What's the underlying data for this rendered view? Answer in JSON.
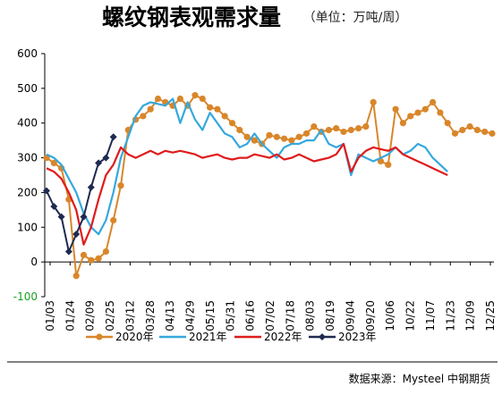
{
  "chart_data": {
    "type": "line",
    "title": "螺纹钢表观需求量",
    "subtitle": "（单位：万吨/周）",
    "source": "数据来源：Mysteel 中钢期货",
    "ylim": [
      -100,
      600
    ],
    "y_ticks": [
      "-100",
      "0",
      "100",
      "200",
      "300",
      "400",
      "500",
      "600"
    ],
    "x_ticks": [
      "01/03",
      "01/24",
      "02/09",
      "02/25",
      "03/12",
      "03/28",
      "04/13",
      "04/29",
      "05/15",
      "05/31",
      "06/16",
      "07/02",
      "07/18",
      "08/03",
      "08/19",
      "09/04",
      "09/20",
      "10/06",
      "10/22",
      "11/07",
      "11/23",
      "12/09",
      "12/25"
    ],
    "legend_position": "bottom",
    "series": [
      {
        "name": "2020年",
        "color": "#d9862a",
        "marker": "circle",
        "values": [
          300,
          285,
          270,
          180,
          -40,
          20,
          5,
          10,
          30,
          120,
          220,
          380,
          410,
          420,
          440,
          470,
          460,
          450,
          470,
          450,
          480,
          470,
          445,
          440,
          420,
          400,
          380,
          360,
          350,
          340,
          365,
          360,
          355,
          350,
          360,
          370,
          390,
          375,
          380,
          385,
          375,
          380,
          385,
          390,
          460,
          290,
          280,
          440,
          400,
          420,
          430,
          440,
          460,
          430,
          400,
          370,
          380,
          390,
          380,
          375,
          370
        ]
      },
      {
        "name": "2021年",
        "color": "#35a8de",
        "marker": "none",
        "values": [
          310,
          300,
          280,
          240,
          200,
          140,
          100,
          80,
          120,
          200,
          300,
          360,
          420,
          450,
          460,
          455,
          450,
          470,
          400,
          460,
          410,
          380,
          430,
          400,
          370,
          360,
          330,
          340,
          370,
          340,
          320,
          300,
          330,
          340,
          340,
          350,
          350,
          380,
          340,
          330,
          340,
          250,
          310,
          300,
          290,
          300,
          310,
          330,
          310,
          320,
          340,
          330,
          300,
          280,
          260
        ]
      },
      {
        "name": "2022年",
        "color": "#e01b1b",
        "marker": "none",
        "values": [
          270,
          260,
          240,
          200,
          150,
          50,
          100,
          180,
          250,
          280,
          330,
          310,
          300,
          310,
          320,
          310,
          320,
          315,
          320,
          315,
          310,
          300,
          305,
          310,
          300,
          295,
          300,
          300,
          310,
          305,
          300,
          310,
          295,
          300,
          310,
          300,
          290,
          295,
          300,
          310,
          340,
          260,
          300,
          320,
          330,
          325,
          320,
          330,
          310,
          300,
          290,
          280,
          270,
          260,
          250
        ]
      },
      {
        "name": "2023年",
        "color": "#1f2a52",
        "marker": "diamond",
        "values": [
          205,
          160,
          130,
          30,
          80,
          130,
          215,
          285,
          300,
          360
        ]
      }
    ]
  }
}
